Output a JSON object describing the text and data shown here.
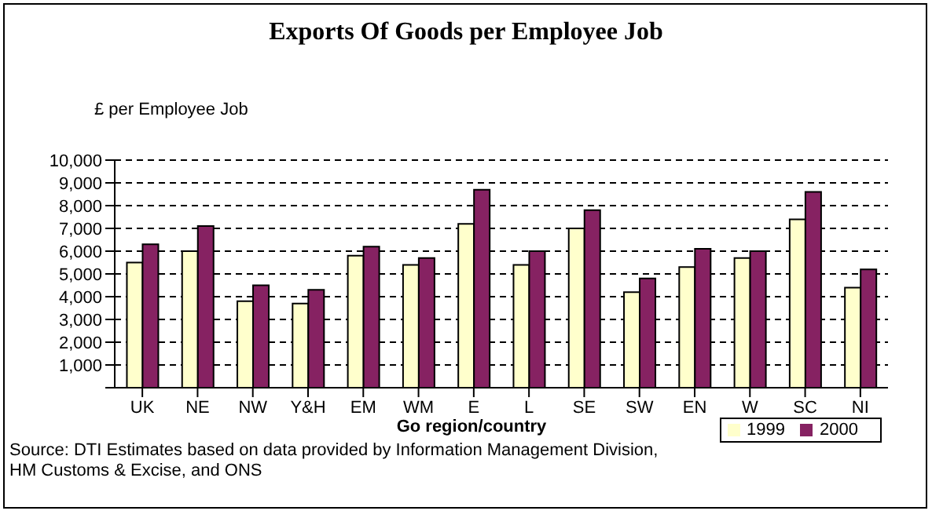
{
  "chart_data": {
    "type": "bar",
    "title": "Exports Of Goods per Employee Job",
    "ylabel": "£ per Employee Job",
    "xlabel": "Go region/country",
    "annotations": [
      "Source: DTI Estimates based on data provided by Information Management Division, HM Customs & Excise, and ONS"
    ],
    "categories": [
      "UK",
      "NE",
      "NW",
      "Y&H",
      "EM",
      "WM",
      "E",
      "L",
      "SE",
      "SW",
      "EN",
      "W",
      "SC",
      "NI"
    ],
    "series": [
      {
        "name": "1999",
        "color": "#ffffcc",
        "values": [
          5500,
          6000,
          3800,
          3700,
          5800,
          5400,
          7200,
          5400,
          7000,
          4200,
          5300,
          5700,
          7400,
          4400
        ]
      },
      {
        "name": "2000",
        "color": "#862262",
        "values": [
          6300,
          7100,
          4500,
          4300,
          6200,
          5700,
          8700,
          6000,
          7800,
          4800,
          6100,
          6000,
          8600,
          5200
        ]
      }
    ],
    "ylim": [
      0,
      10000
    ],
    "yticks": [
      {
        "value": 0,
        "label": null
      },
      {
        "value": 1000,
        "label": "1,000"
      },
      {
        "value": 2000,
        "label": "2,000"
      },
      {
        "value": 3000,
        "label": "3,000"
      },
      {
        "value": 4000,
        "label": "4,000"
      },
      {
        "value": 5000,
        "label": "5,000"
      },
      {
        "value": 6000,
        "label": "6,000"
      },
      {
        "value": 7000,
        "label": "7,000"
      },
      {
        "value": 8000,
        "label": "8,000"
      },
      {
        "value": 9000,
        "label": "9,000"
      },
      {
        "value": 10000,
        "label": "10,000"
      }
    ],
    "grid": "y",
    "legend": "bottom right"
  }
}
